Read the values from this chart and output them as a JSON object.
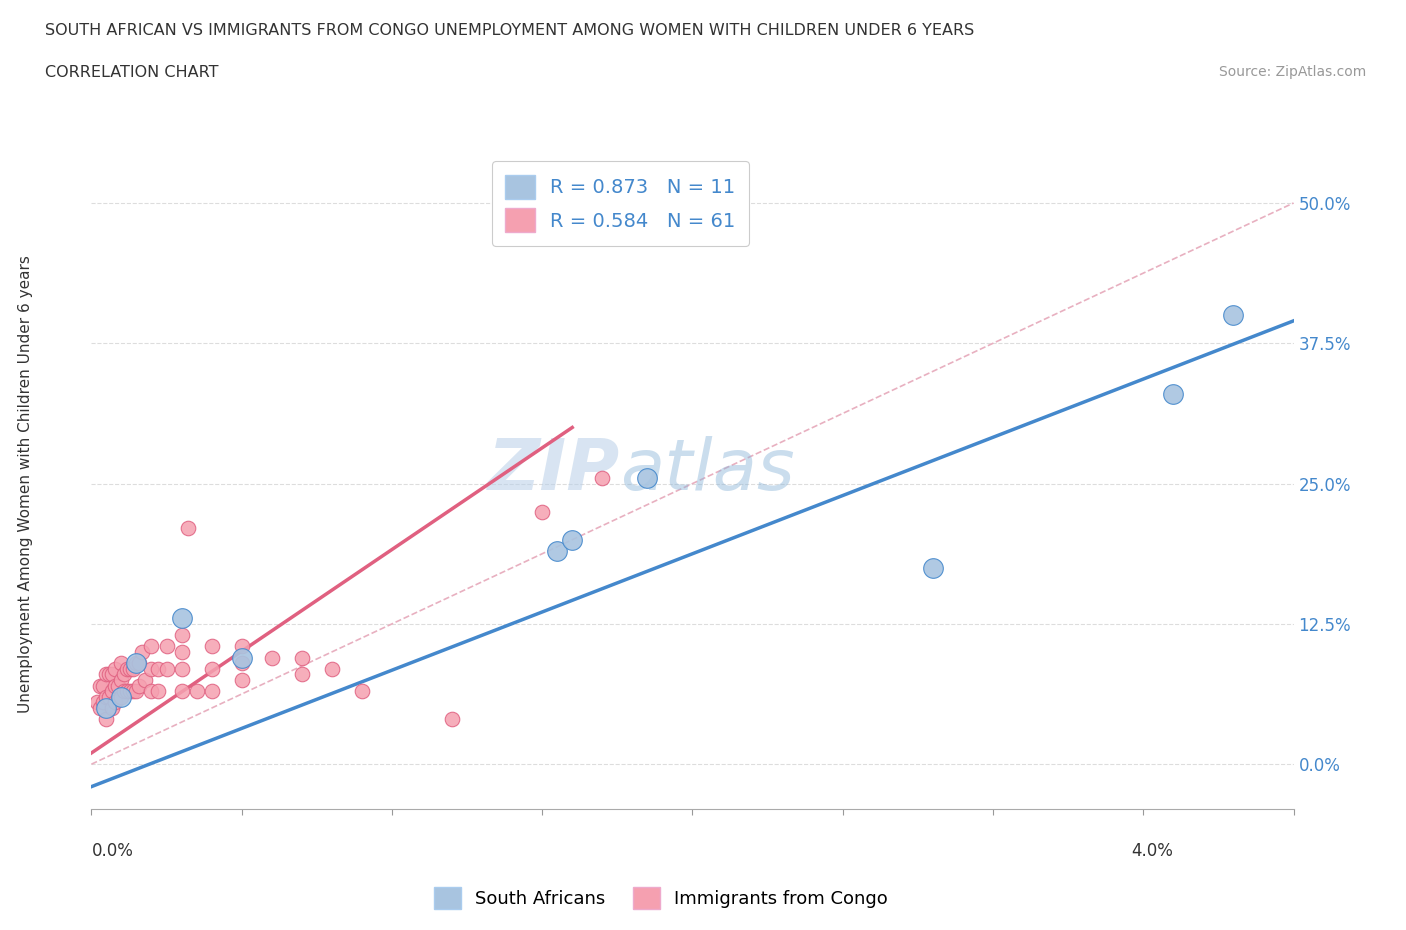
{
  "title_line1": "SOUTH AFRICAN VS IMMIGRANTS FROM CONGO UNEMPLOYMENT AMONG WOMEN WITH CHILDREN UNDER 6 YEARS",
  "title_line2": "CORRELATION CHART",
  "source": "Source: ZipAtlas.com",
  "ylabel": "Unemployment Among Women with Children Under 6 years",
  "y_ticks_right": [
    "0.0%",
    "12.5%",
    "25.0%",
    "37.5%",
    "50.0%"
  ],
  "y_ticks_vals": [
    0.0,
    0.125,
    0.25,
    0.375,
    0.5
  ],
  "xlim": [
    0.0,
    0.04
  ],
  "ylim": [
    -0.04,
    0.54
  ],
  "r_sa": 0.873,
  "n_sa": 11,
  "r_congo": 0.584,
  "n_congo": 61,
  "color_sa": "#a8c4e0",
  "color_congo": "#f5a0b0",
  "line_color_sa": "#4488cc",
  "line_color_congo": "#e06080",
  "line_color_trend": "#d0b0c0",
  "sa_points_x": [
    0.0005,
    0.001,
    0.0015,
    0.003,
    0.005,
    0.0155,
    0.016,
    0.0185,
    0.028,
    0.036,
    0.038
  ],
  "sa_points_y": [
    0.05,
    0.06,
    0.09,
    0.13,
    0.095,
    0.19,
    0.2,
    0.255,
    0.175,
    0.33,
    0.4
  ],
  "congo_points_x": [
    0.0002,
    0.0003,
    0.0003,
    0.0004,
    0.0004,
    0.0005,
    0.0005,
    0.0005,
    0.0006,
    0.0006,
    0.0007,
    0.0007,
    0.0007,
    0.0008,
    0.0008,
    0.0008,
    0.0009,
    0.001,
    0.001,
    0.001,
    0.0011,
    0.0011,
    0.0012,
    0.0012,
    0.0013,
    0.0013,
    0.0014,
    0.0014,
    0.0015,
    0.0015,
    0.0016,
    0.0016,
    0.0017,
    0.0018,
    0.002,
    0.002,
    0.002,
    0.0022,
    0.0022,
    0.0025,
    0.0025,
    0.003,
    0.003,
    0.003,
    0.003,
    0.0032,
    0.0035,
    0.004,
    0.004,
    0.004,
    0.005,
    0.005,
    0.005,
    0.006,
    0.007,
    0.007,
    0.008,
    0.009,
    0.012,
    0.015,
    0.017
  ],
  "congo_points_y": [
    0.055,
    0.05,
    0.07,
    0.055,
    0.07,
    0.04,
    0.06,
    0.08,
    0.06,
    0.08,
    0.05,
    0.065,
    0.08,
    0.055,
    0.07,
    0.085,
    0.07,
    0.06,
    0.075,
    0.09,
    0.065,
    0.08,
    0.065,
    0.085,
    0.065,
    0.085,
    0.065,
    0.085,
    0.065,
    0.09,
    0.07,
    0.09,
    0.1,
    0.075,
    0.065,
    0.085,
    0.105,
    0.065,
    0.085,
    0.085,
    0.105,
    0.065,
    0.085,
    0.1,
    0.115,
    0.21,
    0.065,
    0.065,
    0.085,
    0.105,
    0.075,
    0.09,
    0.105,
    0.095,
    0.08,
    0.095,
    0.085,
    0.065,
    0.04,
    0.225,
    0.255
  ],
  "legend_label_sa": "R = 0.873   N = 11",
  "legend_label_congo": "R = 0.584   N = 61",
  "bottom_legend_sa": "South Africans",
  "bottom_legend_congo": "Immigrants from Congo",
  "watermark_zip": "ZIP",
  "watermark_atlas": "atlas",
  "sa_line_x": [
    0.0,
    0.04
  ],
  "sa_line_y": [
    -0.02,
    0.395
  ],
  "congo_line_x": [
    0.0,
    0.016
  ],
  "congo_line_y": [
    0.01,
    0.3
  ]
}
